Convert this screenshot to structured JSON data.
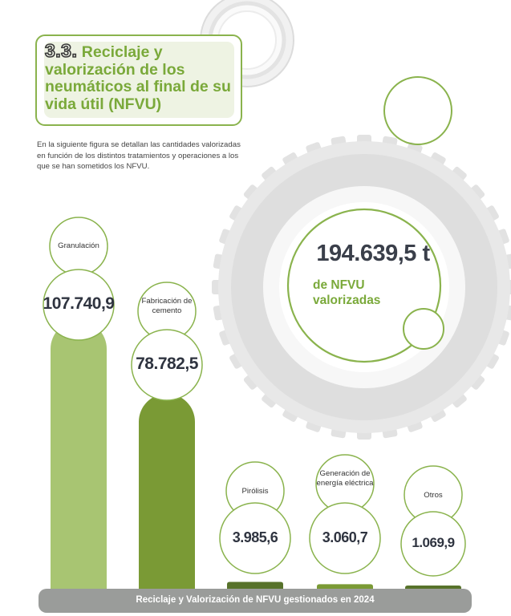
{
  "section": {
    "number": "3.3.",
    "title": "Reciclaje y valorización de los neumáticos al final de su vida útil (NFVU)"
  },
  "intro": "En la siguiente figura se detallan las cantidades valorizadas en función de los distintos tratamientos y operaciones a los que se han sometidos los NFVU.",
  "total": {
    "value": "194.639,5 t",
    "label": "de NFVU valorizadas"
  },
  "chart_data": {
    "type": "bar",
    "title": "Reciclaje y Valorización de NFVU gestionados en 2024",
    "categories": [
      "Granulación",
      "Fabricación de cemento",
      "Pirólisis",
      "Generación de energía eléctrica",
      "Otros"
    ],
    "values": [
      107740.9,
      78782.5,
      3985.6,
      3060.7,
      1069.9
    ],
    "value_labels": [
      "107.740,9",
      "78.782,5",
      "3.985,6",
      "3.060,7",
      "1.069,9"
    ],
    "colors": [
      "#a8c572",
      "#7a9a35",
      "#57722a",
      "#7a9a35",
      "#57722a"
    ],
    "accent_color": "#8ab34d",
    "xlabel": "",
    "ylabel": "",
    "grid": false,
    "legend": "none"
  }
}
